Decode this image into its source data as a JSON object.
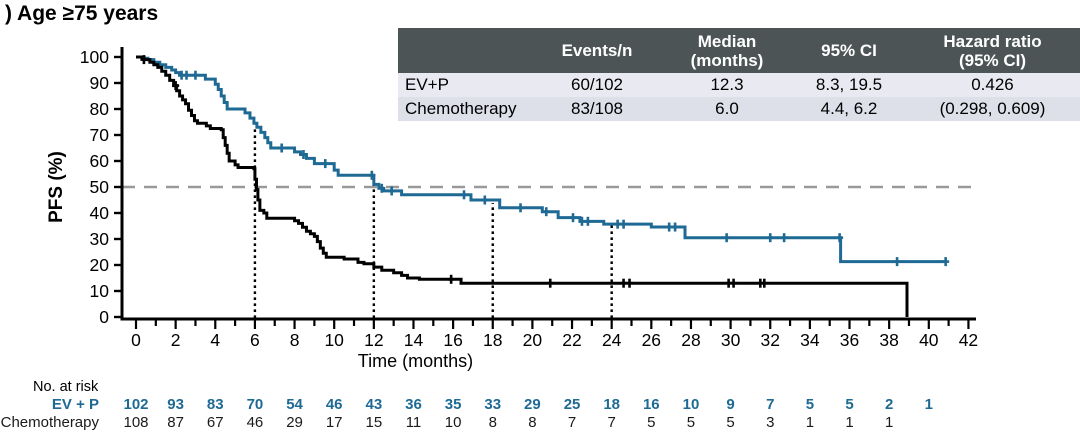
{
  "title": ") Age ≥75 years",
  "summary_table": {
    "header_bg": "#4c5455",
    "row_bgs": [
      "#e9eaf1",
      "#dee0e9"
    ],
    "headers": [
      "",
      "Events/n",
      "Median\n(months)",
      "95% CI",
      "Hazard ratio\n(95% CI)"
    ],
    "rows": [
      {
        "label": "EV+P",
        "events_n": "60/102",
        "median": "12.3",
        "ci": "8.3, 19.5",
        "hr": "0.426"
      },
      {
        "label": "Chemotherapy",
        "events_n": "83/108",
        "median": "6.0",
        "ci": "4.4, 6.2",
        "hr": "(0.298, 0.609)"
      }
    ]
  },
  "chart_data": {
    "type": "line",
    "subtype": "kaplan-meier-step",
    "title": ") Age ≥75 years",
    "xlabel": "Time (months)",
    "ylabel": "PFS (%)",
    "xlim": [
      0,
      42
    ],
    "ylim": [
      0,
      100
    ],
    "x_tick_interval_labeled": 2,
    "x_tick_interval_minor": 1,
    "y_tick_interval": 10,
    "grid": false,
    "median_reference_line_y": 50,
    "median_line_color": "#999999",
    "landmark_dotted_lines": [
      {
        "x": 6,
        "top_pct": 73
      },
      {
        "x": 12,
        "top_pct": 51
      },
      {
        "x": 18,
        "top_pct": 43.8
      },
      {
        "x": 24,
        "top_pct": 36.5
      }
    ],
    "series": [
      {
        "name": "EV+P",
        "color": "#1e6a94",
        "steps": [
          [
            0,
            100
          ],
          [
            0.3,
            99.5
          ],
          [
            0.6,
            99
          ],
          [
            0.9,
            98
          ],
          [
            1.2,
            97
          ],
          [
            1.5,
            96
          ],
          [
            1.8,
            95
          ],
          [
            2.0,
            94
          ],
          [
            2.2,
            93
          ],
          [
            3.5,
            91.5
          ],
          [
            4.0,
            89.5
          ],
          [
            4.15,
            87.5
          ],
          [
            4.3,
            85
          ],
          [
            4.45,
            82.5
          ],
          [
            4.6,
            80
          ],
          [
            5.5,
            78.5
          ],
          [
            5.75,
            76.5
          ],
          [
            5.95,
            74.5
          ],
          [
            6.1,
            73
          ],
          [
            6.3,
            71
          ],
          [
            6.5,
            69
          ],
          [
            6.65,
            67
          ],
          [
            6.8,
            65
          ],
          [
            8.0,
            63.5
          ],
          [
            8.3,
            62.5
          ],
          [
            8.6,
            61
          ],
          [
            9.0,
            59
          ],
          [
            10.0,
            56.5
          ],
          [
            10.2,
            54.5
          ],
          [
            12.0,
            51
          ],
          [
            12.25,
            49.5
          ],
          [
            12.45,
            48.5
          ],
          [
            13.4,
            47
          ],
          [
            16.9,
            45
          ],
          [
            18.35,
            42
          ],
          [
            20.5,
            40.5
          ],
          [
            21.3,
            38.2
          ],
          [
            22.4,
            36.8
          ],
          [
            23.6,
            35.7
          ],
          [
            26.0,
            34.6
          ],
          [
            27.7,
            30.5
          ],
          [
            35.55,
            21.3
          ],
          [
            40.85,
            21.3
          ]
        ],
        "censor_times": [
          2.3,
          2.55,
          3.0,
          7.35,
          8.45,
          9.55,
          11.9,
          12.4,
          12.9,
          16.55,
          17.6,
          19.4,
          20.7,
          22.05,
          22.5,
          22.8,
          24.3,
          24.6,
          26.9,
          27.2,
          29.8,
          32.0,
          32.7,
          35.5,
          38.4,
          40.85
        ]
      },
      {
        "name": "Chemotherapy",
        "color": "#000000",
        "steps": [
          [
            0,
            100
          ],
          [
            0.4,
            99
          ],
          [
            0.7,
            98
          ],
          [
            0.9,
            97
          ],
          [
            1.1,
            96
          ],
          [
            1.3,
            94.5
          ],
          [
            1.5,
            93
          ],
          [
            1.7,
            91
          ],
          [
            1.9,
            89
          ],
          [
            2.05,
            87
          ],
          [
            2.2,
            85
          ],
          [
            2.35,
            83.5
          ],
          [
            2.5,
            82
          ],
          [
            2.65,
            79.5
          ],
          [
            2.8,
            77.5
          ],
          [
            2.95,
            75.5
          ],
          [
            3.1,
            74.5
          ],
          [
            3.55,
            73.5
          ],
          [
            3.75,
            72.5
          ],
          [
            4.3,
            72
          ],
          [
            4.4,
            69
          ],
          [
            4.5,
            66
          ],
          [
            4.6,
            63
          ],
          [
            4.7,
            60
          ],
          [
            5.0,
            58.5
          ],
          [
            5.15,
            57.5
          ],
          [
            5.95,
            57
          ],
          [
            6.0,
            53
          ],
          [
            6.08,
            49
          ],
          [
            6.15,
            45
          ],
          [
            6.25,
            41
          ],
          [
            6.45,
            40
          ],
          [
            6.6,
            38
          ],
          [
            8.0,
            37
          ],
          [
            8.2,
            36
          ],
          [
            8.4,
            34.5
          ],
          [
            8.6,
            33
          ],
          [
            8.8,
            32
          ],
          [
            9.0,
            31
          ],
          [
            9.15,
            29
          ],
          [
            9.3,
            26.5
          ],
          [
            9.45,
            24.5
          ],
          [
            9.6,
            23
          ],
          [
            10.5,
            22.3
          ],
          [
            11.2,
            21
          ],
          [
            11.5,
            20.5
          ],
          [
            12.0,
            19.2
          ],
          [
            12.4,
            18
          ],
          [
            13.0,
            17
          ],
          [
            13.4,
            16
          ],
          [
            13.7,
            15
          ],
          [
            14.3,
            14.5
          ],
          [
            16.4,
            13
          ],
          [
            38.85,
            13
          ],
          [
            38.9,
            0
          ]
        ],
        "censor_times": [
          0.4,
          2.0,
          15.9,
          20.9,
          24.6,
          24.9,
          29.9,
          30.15,
          31.5,
          31.7
        ]
      }
    ]
  },
  "risk_table": {
    "caption": "No. at risk",
    "month_interval": 2,
    "rows": [
      {
        "label": "EV + P",
        "color": "#1e6a94",
        "bold": true,
        "counts": [
          102,
          93,
          83,
          70,
          54,
          46,
          43,
          36,
          35,
          33,
          29,
          25,
          18,
          16,
          10,
          9,
          7,
          5,
          5,
          2,
          1
        ]
      },
      {
        "label": "Chemotherapy",
        "color": "#1a1a1a",
        "bold": false,
        "counts": [
          108,
          87,
          67,
          46,
          29,
          17,
          15,
          11,
          10,
          8,
          8,
          7,
          7,
          5,
          5,
          5,
          3,
          1,
          1,
          1
        ]
      }
    ]
  }
}
